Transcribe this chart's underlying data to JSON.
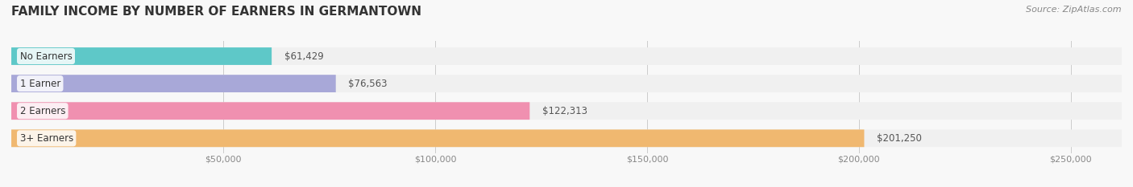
{
  "title": "FAMILY INCOME BY NUMBER OF EARNERS IN GERMANTOWN",
  "source": "Source: ZipAtlas.com",
  "categories": [
    "No Earners",
    "1 Earner",
    "2 Earners",
    "3+ Earners"
  ],
  "values": [
    61429,
    76563,
    122313,
    201250
  ],
  "bar_colors": [
    "#5ec8c8",
    "#a8a8d8",
    "#f090b0",
    "#f0b870"
  ],
  "bar_bg_color": "#f0f0f0",
  "label_colors": [
    "#5ec8c8",
    "#a8a8d8",
    "#f090b0",
    "#f0b870"
  ],
  "value_labels": [
    "$61,429",
    "$76,563",
    "$122,313",
    "$201,250"
  ],
  "x_ticks": [
    0,
    50000,
    100000,
    150000,
    200000,
    250000
  ],
  "x_tick_labels": [
    "",
    "$50,000",
    "$100,000",
    "$150,000",
    "$200,000",
    "$250,000"
  ],
  "xlim": [
    0,
    262000
  ],
  "background_color": "#f8f8f8",
  "title_fontsize": 11,
  "bar_label_fontsize": 8.5,
  "value_fontsize": 8.5,
  "tick_fontsize": 8,
  "source_fontsize": 8
}
